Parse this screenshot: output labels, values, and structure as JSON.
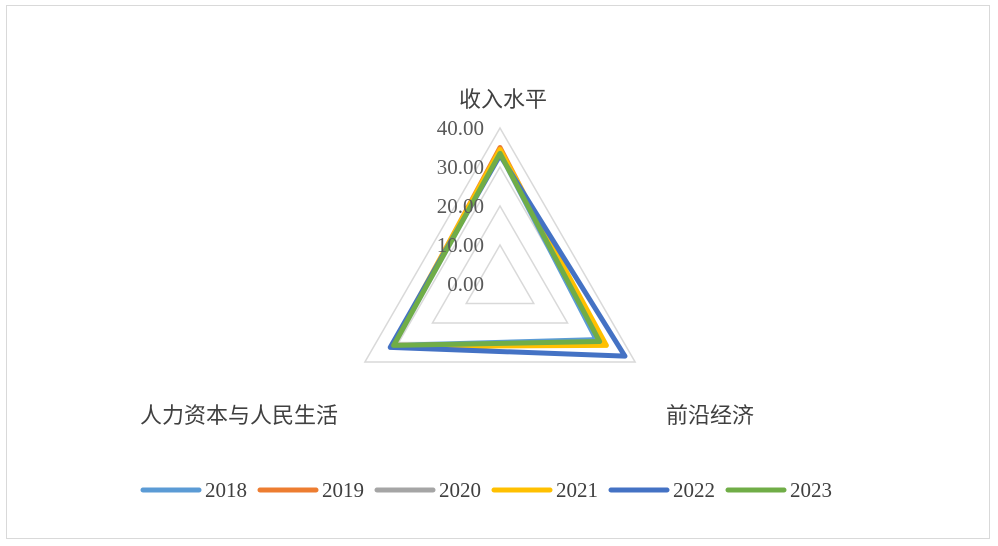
{
  "chart_data": {
    "type": "radar",
    "title": "",
    "axes": [
      "收入水平",
      "前沿经济",
      "人力资本与人民生活"
    ],
    "radial_ticks": [
      "0.00",
      "10.00",
      "20.00",
      "30.00",
      "40.00"
    ],
    "rlim": [
      0,
      40
    ],
    "grid": true,
    "legend_position": "bottom",
    "series": [
      {
        "name": "2018",
        "color": "#5b9bd5",
        "values": [
          33.5,
          28.5,
          31.5
        ]
      },
      {
        "name": "2019",
        "color": "#ed7d31",
        "values": [
          35.0,
          30.0,
          31.5
        ]
      },
      {
        "name": "2020",
        "color": "#a5a5a5",
        "values": [
          34.0,
          30.0,
          32.0
        ]
      },
      {
        "name": "2021",
        "color": "#ffc000",
        "values": [
          34.5,
          31.5,
          32.0
        ]
      },
      {
        "name": "2022",
        "color": "#4472c4",
        "values": [
          33.0,
          37.0,
          32.5
        ]
      },
      {
        "name": "2023",
        "color": "#70ad47",
        "values": [
          33.5,
          29.5,
          31.5
        ]
      }
    ]
  }
}
